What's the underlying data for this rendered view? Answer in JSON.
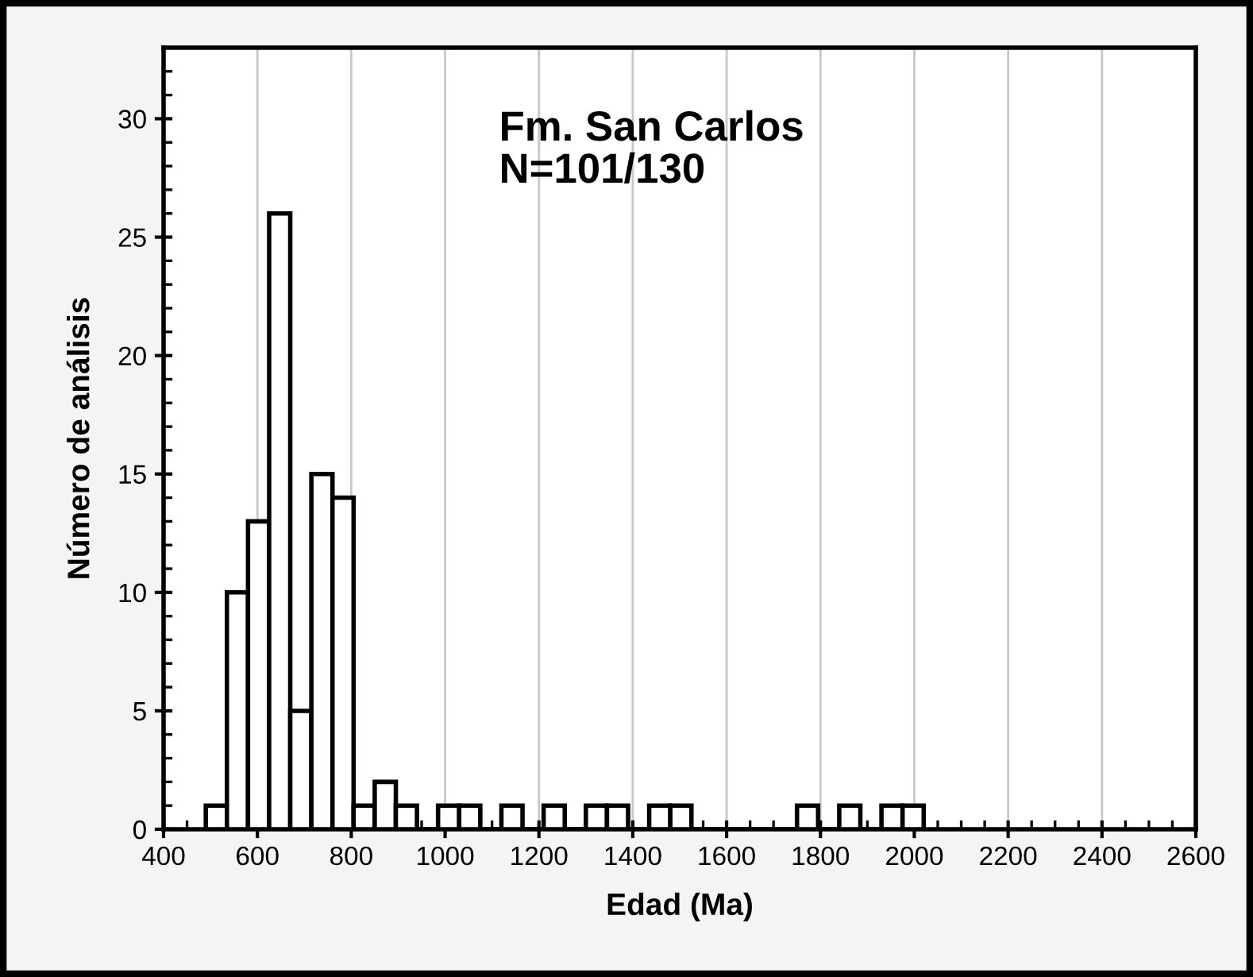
{
  "chart_data": {
    "type": "histogram",
    "xlabel": "Edad (Ma)",
    "ylabel": "Número de análisis",
    "annotations": [
      "Fm. San Carlos\nN=101/130"
    ],
    "bins": [
      490,
      535,
      580,
      625,
      670,
      715,
      760,
      805,
      850,
      895,
      940,
      985,
      1030,
      1075,
      1120,
      1165,
      1210,
      1255,
      1300,
      1345,
      1390,
      1435,
      1480,
      1525,
      1570,
      1615,
      1660,
      1705,
      1750,
      1795,
      1840,
      1885,
      1930,
      1975,
      2020
    ],
    "values": [
      1,
      10,
      13,
      26,
      5,
      15,
      14,
      1,
      2,
      1,
      0,
      1,
      1,
      0,
      1,
      0,
      1,
      0,
      1,
      1,
      0,
      1,
      1,
      0,
      0,
      0,
      0,
      0,
      1,
      0,
      1,
      0,
      1,
      1
    ],
    "color": "#ffffff",
    "xlim": [
      400,
      2600
    ],
    "xticks": [
      400,
      600,
      800,
      1000,
      1200,
      1400,
      1600,
      1800,
      2000,
      2200,
      2400,
      2600
    ],
    "ylim": [
      0,
      33
    ],
    "yticks": [
      0,
      5,
      10,
      15,
      20,
      25,
      30
    ],
    "grid": "x"
  }
}
